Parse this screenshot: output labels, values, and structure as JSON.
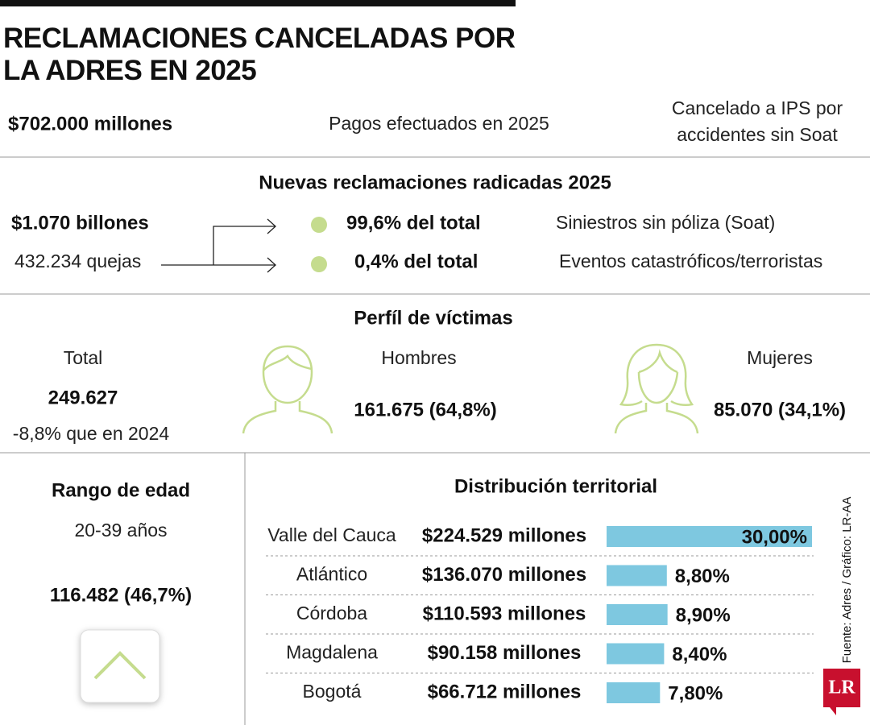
{
  "header": {
    "title": "RECLAMACIONES CANCELADAS POR LA ADRES EN 2025"
  },
  "summary": {
    "amount": "$702.000 millones",
    "label": "Pagos efectuados en 2025",
    "note": "Cancelado a IPS por accidentes sin Soat"
  },
  "claims": {
    "title": "Nuevas reclamaciones radicadas 2025",
    "amount": "$1.070 billones",
    "count": "432.234 quejas",
    "items": [
      {
        "share": "99,6% del total",
        "label": "Siniestros sin póliza (Soat)"
      },
      {
        "share": "0,4% del total",
        "label": "Eventos catastróficos/terroristas"
      }
    ]
  },
  "victims": {
    "title": "Perfíl de víctimas",
    "total_label": "Total",
    "total": "249.627",
    "change": "-8,8% que en 2024",
    "men_label": "Hombres",
    "men": "161.675 (64,8%)",
    "women_label": "Mujeres",
    "women": "85.070 (34,1%)"
  },
  "age": {
    "title": "Rango de edad",
    "range": "20-39 años",
    "count": "116.482 (46,7%)"
  },
  "source": "Fuente: Adres / Gráfico: LR-AA",
  "logo": "LR",
  "chart_data": {
    "type": "bar",
    "title": "Distribución territorial",
    "categories": [
      "Valle del Cauca",
      "Atlántico",
      "Córdoba",
      "Magdalena",
      "Bogotá"
    ],
    "amounts": [
      "$224.529 millones",
      "$136.070 millones",
      "$110.593 millones",
      "$90.158 millones",
      "$66.712 millones"
    ],
    "values": [
      30,
      8.8,
      8.9,
      8.4,
      7.8
    ],
    "value_labels": [
      "30,00%",
      "8,80%",
      "8,90%",
      "8,40%",
      "7,80%"
    ],
    "color": "#7ec8e0"
  }
}
